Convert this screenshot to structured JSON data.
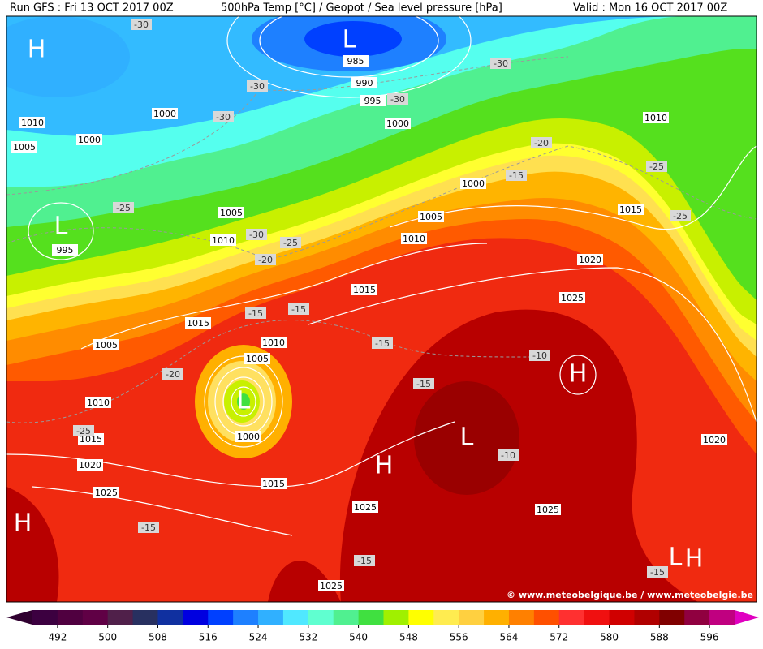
{
  "header": {
    "run": "Run GFS : Fri 13 OCT 2017 00Z",
    "product": "500hPa Temp [°C] / Geopot / Sea level pressure [hPa]",
    "valid": "Valid : Mon 16 OCT 2017 00Z"
  },
  "map": {
    "isobar_labels": [
      985,
      990,
      995,
      1000,
      1000,
      1010,
      1005,
      1000,
      995,
      1005,
      1010,
      1000,
      1005,
      1010,
      1010,
      1015,
      1020,
      1025,
      1015,
      1015,
      1010,
      1005,
      1005,
      1010,
      1015,
      1020,
      1025,
      1000,
      1015,
      1025,
      1025,
      1020,
      1025
    ],
    "temperature_labels": [
      -30,
      -30,
      -30,
      -30,
      -30,
      -20,
      -15,
      -25,
      -25,
      -25,
      -30,
      -25,
      -20,
      -15,
      -15,
      -15,
      -20,
      -10,
      -15,
      -25,
      -10,
      -15,
      -15,
      -15
    ],
    "pressure_centers": [
      "H",
      "L",
      "L",
      "L",
      "H",
      "H",
      "L",
      "H",
      "L",
      "H"
    ],
    "copyright": "© www.meteobelgique.be / www.meteobelgie.be"
  },
  "colorbar": {
    "range": [
      488,
      600
    ],
    "ticks": [
      492,
      500,
      508,
      516,
      524,
      532,
      540,
      548,
      556,
      564,
      572,
      580,
      588,
      596
    ],
    "colors": [
      "#3c0040",
      "#500040",
      "#600045",
      "#50204a",
      "#283060",
      "#1030a0",
      "#0000e0",
      "#0040ff",
      "#1e80ff",
      "#30b0ff",
      "#50e8ff",
      "#60ffd0",
      "#50f090",
      "#40e040",
      "#a0f000",
      "#ffff00",
      "#ffec50",
      "#ffd040",
      "#ffb000",
      "#ff8000",
      "#ff5000",
      "#ff3030",
      "#f01010",
      "#d00000",
      "#b00000",
      "#800000",
      "#900040",
      "#c00080"
    ]
  }
}
